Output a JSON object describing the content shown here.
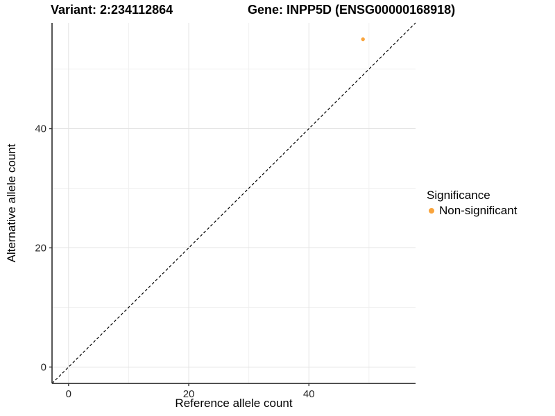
{
  "chart_data": {
    "type": "scatter",
    "titles": {
      "left": "Variant: 2:234112864",
      "right": "Gene: INPP5D (ENSG00000168918)"
    },
    "xlabel": "Reference allele count",
    "ylabel": "Alternative allele count",
    "xlim": [
      -2.75,
      57.75
    ],
    "ylim": [
      -2.75,
      57.75
    ],
    "x_major_ticks": [
      0,
      20,
      40
    ],
    "y_major_ticks": [
      0,
      20,
      40
    ],
    "x_minor_ticks": [
      10,
      30,
      50
    ],
    "y_minor_ticks": [
      10,
      30,
      50
    ],
    "grid": true,
    "identity_line": {
      "type": "y=x",
      "style": "dashed",
      "color": "#000000"
    },
    "points": [
      {
        "x": 49,
        "y": 55,
        "series": "Non-significant",
        "color": "#F9A43C"
      }
    ],
    "legend": {
      "title": "Significance",
      "position": "right",
      "entries": [
        {
          "label": "Non-significant",
          "color": "#F9A43C"
        }
      ]
    },
    "colors": {
      "grid_major": "#E3E3E3",
      "grid_minor": "#F0F0F0",
      "axis_line": "#383838",
      "tick_mark": "#383838",
      "point": "#F9A43C",
      "background": "#FFFFFF"
    }
  }
}
